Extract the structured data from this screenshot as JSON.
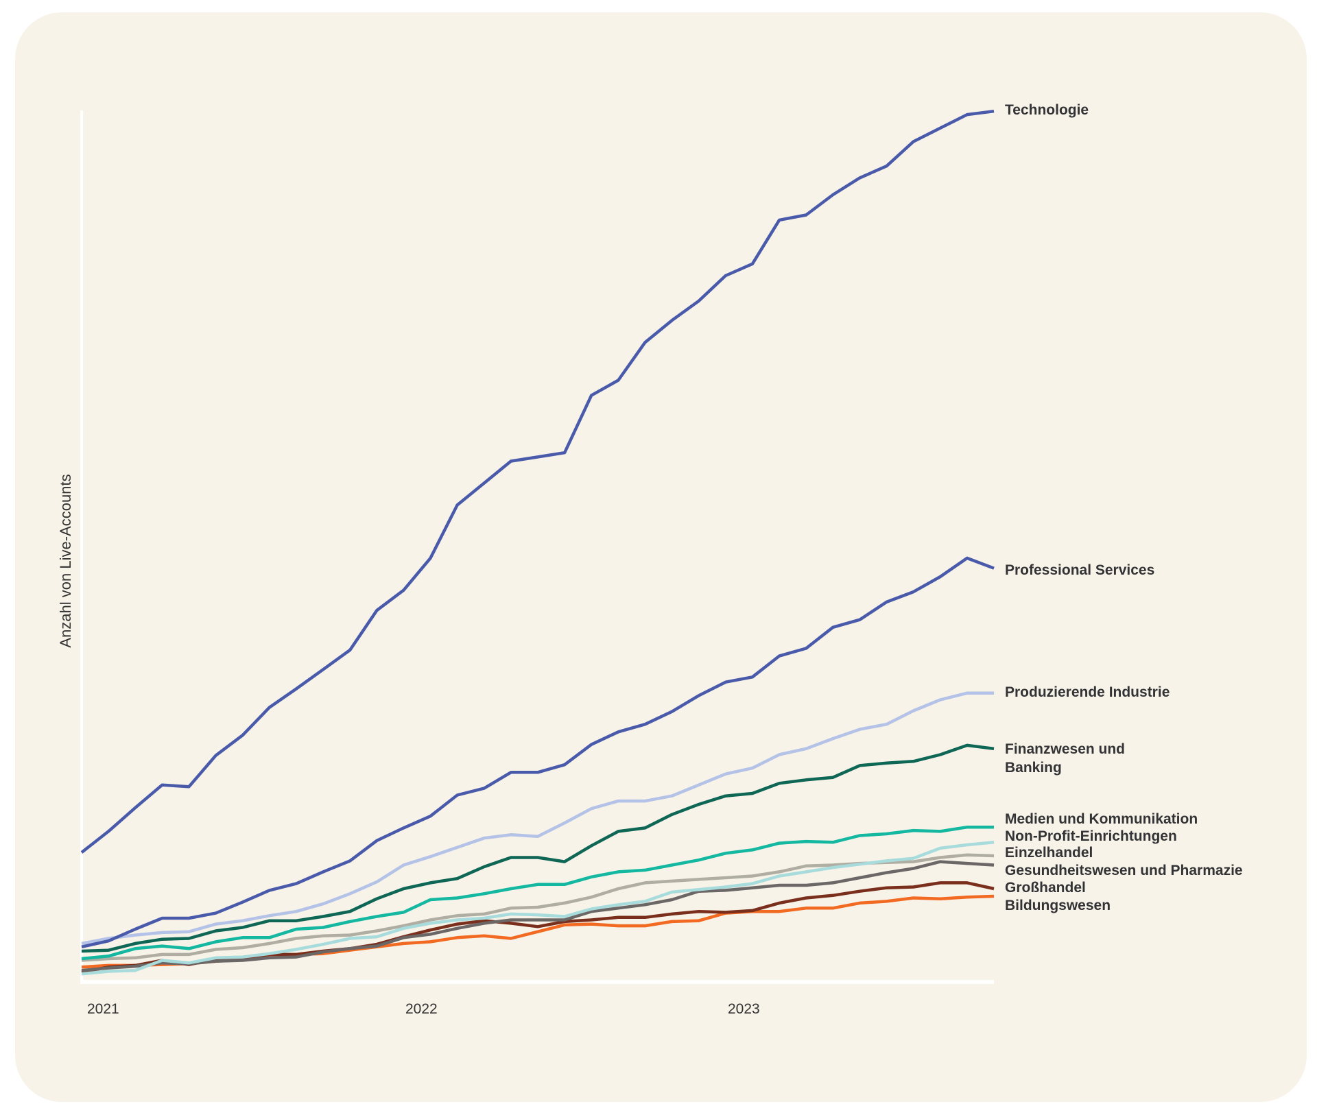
{
  "chart_data": {
    "type": "line",
    "ylabel": "Anzahl von Live-Accounts",
    "xlabel": "",
    "x_tick_labels": [
      "2021",
      "2022",
      "2023"
    ],
    "x_start": "2021-01",
    "x_interval": "monthly",
    "ylim": [
      0,
      1032
    ],
    "grid": false,
    "legend": "direct labels at line ends (right)",
    "series": [
      {
        "name": "Technologie",
        "color": "#4a5aaa",
        "values": [
          152,
          177,
          205,
          232,
          230,
          267,
          291,
          324,
          346,
          369,
          392,
          439,
          463,
          501,
          564,
          590,
          616,
          621,
          626,
          694,
          712,
          757,
          783,
          806,
          836,
          850,
          902,
          908,
          932,
          952,
          966,
          995,
          1011,
          1027,
          1031
        ]
      },
      {
        "name": "Professional Services",
        "color": "#4a5aaa",
        "values": [
          40,
          47,
          61,
          74,
          74,
          80,
          93,
          107,
          115,
          129,
          142,
          166,
          181,
          195,
          220,
          228,
          247,
          247,
          256,
          280,
          295,
          304,
          319,
          338,
          354,
          360,
          385,
          394,
          419,
          428,
          449,
          461,
          479,
          501,
          489
        ]
      },
      {
        "name": "Produzierende Industrie",
        "color": "#b3c2e6",
        "values": [
          44,
          50,
          54,
          57,
          58,
          67,
          71,
          77,
          82,
          91,
          103,
          117,
          137,
          147,
          158,
          169,
          173,
          171,
          187,
          204,
          213,
          213,
          219,
          232,
          245,
          252,
          268,
          275,
          287,
          298,
          304,
          320,
          333,
          341,
          341
        ]
      },
      {
        "name": "Finanzwesen und Banking",
        "color": "#0e6655",
        "values": [
          35,
          36,
          44,
          49,
          50,
          59,
          63,
          71,
          71,
          76,
          82,
          97,
          109,
          116,
          121,
          135,
          146,
          146,
          141,
          160,
          177,
          181,
          197,
          209,
          219,
          222,
          234,
          238,
          241,
          255,
          258,
          260,
          268,
          279,
          275
        ]
      },
      {
        "name": "Medien und Kommunikation",
        "color": "#14b8a0",
        "values": [
          26,
          29,
          38,
          41,
          38,
          46,
          51,
          51,
          61,
          63,
          70,
          76,
          81,
          96,
          98,
          103,
          109,
          114,
          114,
          123,
          129,
          131,
          137,
          143,
          151,
          155,
          163,
          165,
          164,
          172,
          174,
          178,
          177,
          182,
          182
        ]
      },
      {
        "name": "Non-Profit-Einrichtungen",
        "color": "#a8dcdc",
        "values": [
          8,
          11,
          12,
          24,
          21,
          27,
          28,
          32,
          37,
          43,
          50,
          52,
          62,
          68,
          72,
          74,
          79,
          78,
          76,
          85,
          90,
          94,
          105,
          108,
          111,
          115,
          124,
          129,
          134,
          138,
          142,
          145,
          157,
          161,
          164
        ]
      },
      {
        "name": "Einzelhandel",
        "color": "#b0aea2",
        "values": [
          24,
          26,
          27,
          31,
          31,
          37,
          39,
          44,
          50,
          53,
          54,
          59,
          65,
          72,
          77,
          79,
          86,
          87,
          92,
          99,
          109,
          116,
          118,
          120,
          122,
          124,
          129,
          136,
          137,
          139,
          140,
          141,
          146,
          149,
          148
        ]
      },
      {
        "name": "Gesundheitswesen und Pharmazie",
        "color": "#6b6766",
        "values": [
          12,
          15,
          17,
          21,
          20,
          23,
          24,
          27,
          28,
          34,
          38,
          41,
          51,
          55,
          62,
          68,
          72,
          72,
          72,
          82,
          86,
          90,
          96,
          106,
          107,
          110,
          113,
          113,
          116,
          122,
          128,
          133,
          141,
          139,
          137
        ]
      },
      {
        "name": "Großhandel",
        "color": "#7a2e1c",
        "values": [
          10,
          16,
          18,
          24,
          19,
          25,
          26,
          31,
          31,
          35,
          38,
          43,
          52,
          60,
          67,
          71,
          68,
          64,
          70,
          72,
          75,
          75,
          79,
          82,
          81,
          83,
          92,
          98,
          101,
          106,
          110,
          111,
          116,
          116,
          109
        ]
      },
      {
        "name": "Bildungswesen",
        "color": "#f26a21",
        "values": [
          16,
          18,
          18,
          19,
          20,
          23,
          25,
          30,
          31,
          32,
          36,
          40,
          44,
          46,
          51,
          53,
          50,
          58,
          66,
          67,
          65,
          65,
          70,
          71,
          80,
          82,
          82,
          86,
          86,
          92,
          94,
          98,
          97,
          99,
          100
        ]
      }
    ]
  },
  "series_labels": {
    "technologie": "Technologie",
    "professional_services": "Professional Services",
    "produzierende_industrie": "Produzierende Industrie",
    "finanzwesen_line1": "Finanzwesen und",
    "finanzwesen_line2": "Banking",
    "medien": "Medien und Kommunikation",
    "non_profit": "Non-Profit-Einrichtungen",
    "einzelhandel": "Einzelhandel",
    "gesundheit": "Gesundheitswesen und Pharmazie",
    "grosshandel": "Großhandel",
    "bildung": "Bildungswesen"
  },
  "colors": {
    "background": "#f7f3e9",
    "axis": "#ffffff",
    "text": "#333336"
  }
}
